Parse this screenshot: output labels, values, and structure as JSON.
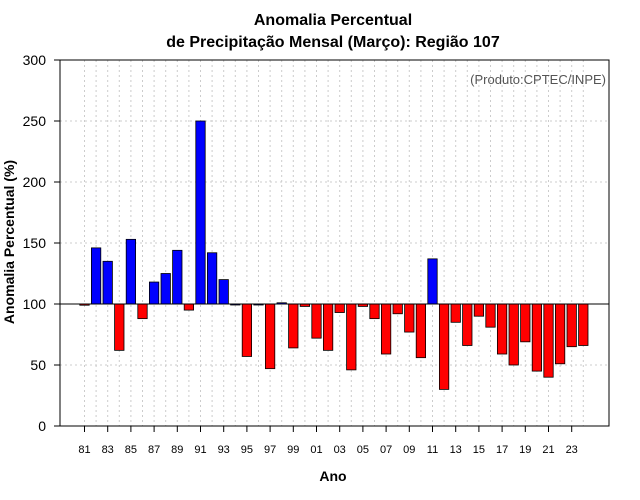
{
  "chart_data": {
    "type": "bar",
    "title_line1": "Anomalia Percentual",
    "title_line2": "de Precipitação Mensal (Março): Região 107",
    "xlabel": "Ano",
    "ylabel": "Anomalia Percentual (%)",
    "credit": "(Produto:CPTEC/INPE)",
    "baseline": 100,
    "ylim": [
      0,
      300
    ],
    "yticks": [
      0,
      50,
      100,
      150,
      200,
      250,
      300
    ],
    "xtick_labels": [
      "81",
      "83",
      "85",
      "87",
      "89",
      "91",
      "93",
      "95",
      "97",
      "99",
      "01",
      "03",
      "05",
      "07",
      "09",
      "11",
      "13",
      "15",
      "17",
      "19",
      "21",
      "23"
    ],
    "categories": [
      "1981",
      "1982",
      "1983",
      "1984",
      "1985",
      "1986",
      "1987",
      "1988",
      "1989",
      "1990",
      "1991",
      "1992",
      "1993",
      "1994",
      "1995",
      "1996",
      "1997",
      "1998",
      "1999",
      "2000",
      "2001",
      "2002",
      "2003",
      "2004",
      "2005",
      "2006",
      "2007",
      "2008",
      "2009",
      "2010",
      "2011",
      "2012",
      "2013",
      "2014",
      "2015",
      "2016",
      "2017",
      "2018",
      "2019",
      "2020",
      "2021",
      "2022",
      "2023",
      "2024"
    ],
    "values": [
      99,
      146,
      135,
      62,
      153,
      88,
      118,
      125,
      144,
      95,
      250,
      142,
      120,
      100,
      57,
      100,
      47,
      101,
      64,
      98,
      72,
      62,
      93,
      46,
      98,
      88,
      59,
      92,
      77,
      56,
      137,
      30,
      85,
      66,
      90,
      81,
      59,
      50,
      69,
      45,
      40,
      51,
      65,
      66
    ],
    "colors": {
      "positive": "#0000ff",
      "negative": "#ff0000",
      "grid": "#cccccc",
      "credit": "#555555"
    }
  }
}
